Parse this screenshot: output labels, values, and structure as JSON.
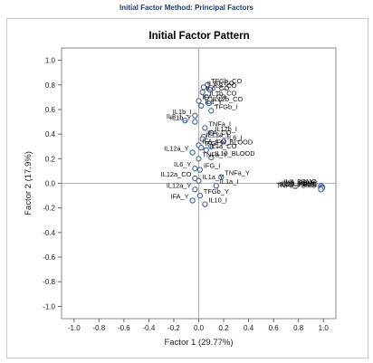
{
  "page": {
    "header": "Initial Factor Method: Principal Factors"
  },
  "chart_data": {
    "type": "scatter",
    "title": "Initial Factor Pattern",
    "xlabel": "Factor 1 (29.77%)",
    "ylabel": "Factor 2 (17.9%)",
    "xlim": [
      -1.1,
      1.1
    ],
    "ylim": [
      -1.1,
      1.1
    ],
    "xticks": [
      "-1.0",
      "-0.8",
      "-0.6",
      "-0.4",
      "-0.2",
      "0.0",
      "0.2",
      "0.4",
      "0.6",
      "0.8",
      "1.0"
    ],
    "yticks": [
      "1.0",
      "0.8",
      "0.6",
      "0.4",
      "0.2",
      "0.0",
      "-0.2",
      "-0.4",
      "-0.6",
      "-0.8",
      "-1.0"
    ],
    "reference_lines": {
      "x": 0,
      "y": 0
    },
    "grid": false,
    "marker": "open-circle",
    "marker_color": "#3a5fa8",
    "points": [
      {
        "label": "TFGb_CO",
        "x": 0.07,
        "y": 0.8
      },
      {
        "label": "IL10_CO",
        "x": 0.04,
        "y": 0.78
      },
      {
        "label": "IL8_CO",
        "x": 0.09,
        "y": 0.76
      },
      {
        "label": "IL6_CO",
        "x": 0.03,
        "y": 0.74
      },
      {
        "label": "IL1b_CO",
        "x": 0.06,
        "y": 0.7
      },
      {
        "label": "IFA_CO",
        "x": 0.0,
        "y": 0.67
      },
      {
        "label": "IL12b_CO",
        "x": 0.08,
        "y": 0.65
      },
      {
        "label": "IL8_Y",
        "x": 0.02,
        "y": 0.63
      },
      {
        "label": "TFGb_I",
        "x": 0.1,
        "y": 0.59
      },
      {
        "label": "IL1b_I",
        "x": -0.03,
        "y": 0.55
      },
      {
        "label": "IL8_I",
        "x": -0.11,
        "y": 0.51
      },
      {
        "label": "IL1b_Y",
        "x": -0.03,
        "y": 0.5
      },
      {
        "label": "TNFa_I",
        "x": 0.05,
        "y": 0.45
      },
      {
        "label": "IL12b_I",
        "x": 0.1,
        "y": 0.41
      },
      {
        "label": "IFA_CO",
        "x": 0.04,
        "y": 0.38
      },
      {
        "label": "IL12a_I",
        "x": 0.03,
        "y": 0.36
      },
      {
        "label": "IL6_I",
        "x": 0.2,
        "y": 0.34
      },
      {
        "label": "IFA_I",
        "x": 0.0,
        "y": 0.31
      },
      {
        "label": "IFN_BLOOD",
        "x": 0.1,
        "y": 0.3
      },
      {
        "label": "IFG_Y",
        "x": 0.02,
        "y": 0.29
      },
      {
        "label": "IL1a_CO",
        "x": 0.06,
        "y": 0.27
      },
      {
        "label": "IL12a_Y",
        "x": -0.05,
        "y": 0.25
      },
      {
        "label": "IL10_BLOOD",
        "x": 0.1,
        "y": 0.21
      },
      {
        "label": "TNFa_Y",
        "x": 0.0,
        "y": 0.2
      },
      {
        "label": "IL6_Y",
        "x": -0.03,
        "y": 0.12
      },
      {
        "label": "IFG_I",
        "x": 0.01,
        "y": 0.11
      },
      {
        "label": "TNFa_Y",
        "x": 0.18,
        "y": 0.05
      },
      {
        "label": "IL12a_CO",
        "x": -0.03,
        "y": 0.04
      },
      {
        "label": "IL1a_Y",
        "x": 0.0,
        "y": 0.02
      },
      {
        "label": "IL1a_I",
        "x": 0.14,
        "y": -0.02
      },
      {
        "label": "IL12a_Y",
        "x": -0.03,
        "y": -0.05
      },
      {
        "label": "TFGb_Y",
        "x": 0.01,
        "y": -0.1
      },
      {
        "label": "IFA_Y",
        "x": -0.05,
        "y": -0.14
      },
      {
        "label": "IL10_I",
        "x": 0.05,
        "y": -0.17
      },
      {
        "label": "IL8_PBMC",
        "x": 0.98,
        "y": -0.02
      },
      {
        "label": "IL6_PBMC",
        "x": 0.99,
        "y": -0.03
      },
      {
        "label": "IL1b_PBMC",
        "x": 0.99,
        "y": -0.03
      },
      {
        "label": "IL10_PBMC",
        "x": 0.98,
        "y": -0.04
      },
      {
        "label": "IL12b_PBMC",
        "x": 0.99,
        "y": -0.04
      },
      {
        "label": "TNFa_PBMC",
        "x": 0.98,
        "y": -0.05
      }
    ]
  }
}
